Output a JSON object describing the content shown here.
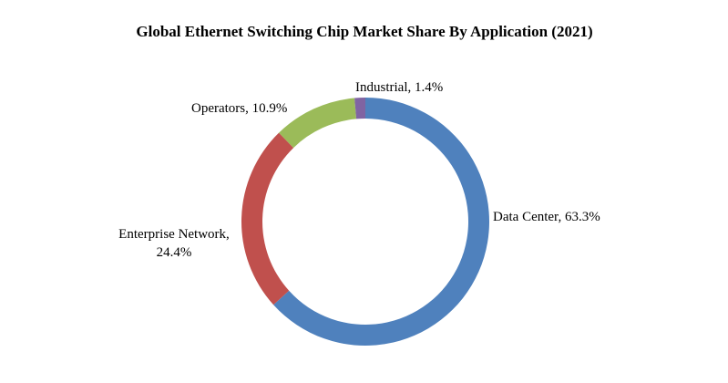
{
  "chart_data": {
    "type": "donut",
    "title": "Global Ethernet Switching Chip Market Share By Application (2021)",
    "labels": [
      "Data Center, 63.3%",
      "Enterprise Network, 24.4%",
      "Operators, 10.9%",
      "Industrial,  1.4%"
    ],
    "values": [
      63.3,
      24.4,
      10.9,
      1.4
    ],
    "colors": [
      "#4f81bd",
      "#c0504d",
      "#9bbb59",
      "#8064a2"
    ]
  }
}
